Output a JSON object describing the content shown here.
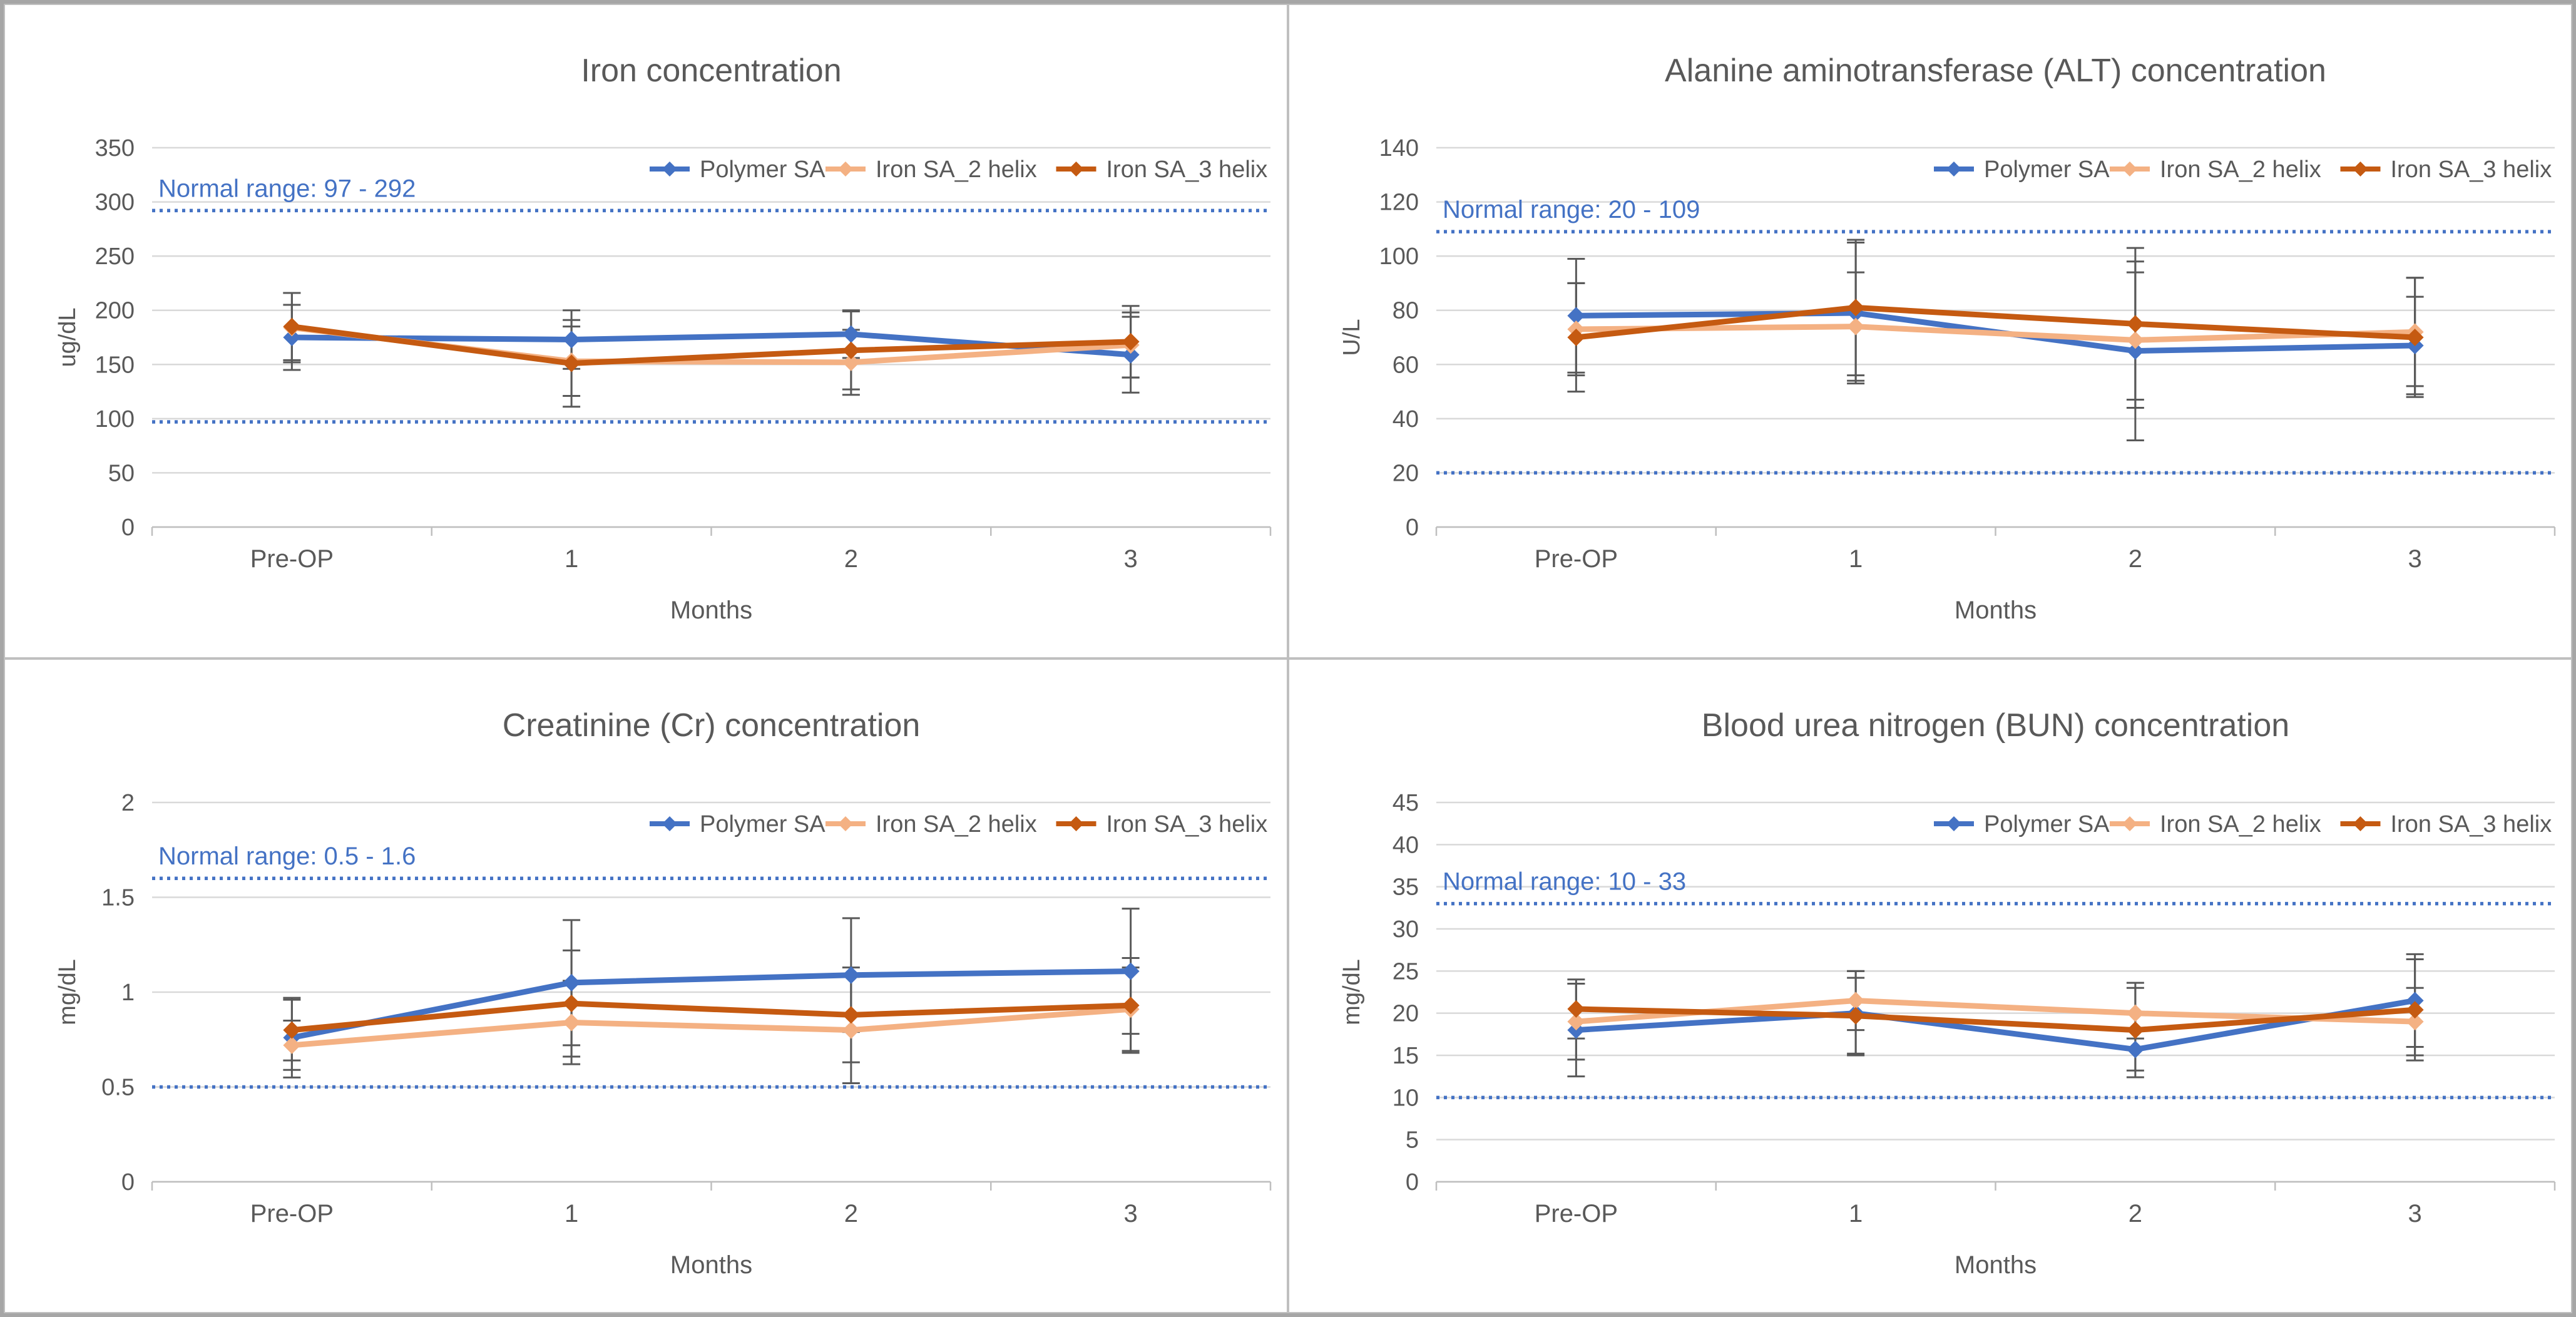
{
  "colors": {
    "series_blue": "#4472c4",
    "series_light_orange": "#f4b183",
    "series_dark_orange": "#c55a11",
    "error_bar": "#595959",
    "gridline": "#d9d9d9",
    "axis_line": "#bfbfbf",
    "axis_text": "#595959",
    "title_text": "#595959",
    "normal_range": "#4472c4",
    "panel_border": "#bfbfbf",
    "outer_border": "#a6a6a6",
    "background": "#ffffff"
  },
  "chart_data": [
    {
      "type": "line",
      "title": "Iron concentration",
      "ylabel": "ug/dL",
      "xlabel": "Months",
      "categories": [
        "Pre-OP",
        "1",
        "2",
        "3"
      ],
      "ylim": [
        0,
        350
      ],
      "y_step": 50,
      "grid": true,
      "legend_position": "top-right",
      "normal_range": {
        "label": "Normal range: 97 - 292",
        "low": 97,
        "high": 292
      },
      "series": [
        {
          "name": "Polymer SA",
          "color": "#4472c4",
          "values": [
            175,
            173,
            178,
            159
          ],
          "errors": [
            30,
            27,
            22,
            35
          ]
        },
        {
          "name": "Iron SA_2 helix",
          "color": "#f4b183",
          "values": [
            184,
            153,
            152,
            168
          ],
          "errors": [
            32,
            32,
            30,
            30
          ]
        },
        {
          "name": "Iron SA_3 helix",
          "color": "#c55a11",
          "values": [
            185,
            151,
            163,
            171
          ],
          "errors": [
            31,
            40,
            36,
            33
          ]
        }
      ]
    },
    {
      "type": "line",
      "title": "Alanine aminotransferase (ALT) concentration",
      "ylabel": "U/L",
      "xlabel": "Months",
      "categories": [
        "Pre-OP",
        "1",
        "2",
        "3"
      ],
      "ylim": [
        0,
        140
      ],
      "y_step": 20,
      "grid": true,
      "legend_position": "top-right",
      "normal_range": {
        "label": "Normal range: 20 - 109",
        "low": 20,
        "high": 109
      },
      "series": [
        {
          "name": "Polymer SA",
          "color": "#4472c4",
          "values": [
            78,
            79,
            65,
            67
          ],
          "errors": [
            21,
            26,
            33,
            18
          ]
        },
        {
          "name": "Iron SA_2 helix",
          "color": "#f4b183",
          "values": [
            73,
            74,
            69,
            72
          ],
          "errors": [
            17,
            20,
            25,
            20
          ]
        },
        {
          "name": "Iron SA_3 helix",
          "color": "#c55a11",
          "values": [
            70,
            81,
            75,
            70
          ],
          "errors": [
            20,
            25,
            28,
            22
          ]
        }
      ]
    },
    {
      "type": "line",
      "title": "Creatinine (Cr) concentration",
      "ylabel": "mg/dL",
      "xlabel": "Months",
      "categories": [
        "Pre-OP",
        "1",
        "2",
        "3"
      ],
      "ylim": [
        0,
        2
      ],
      "y_step": 0.5,
      "grid": true,
      "legend_position": "top-right",
      "normal_range": {
        "label": "Normal range: 0.5 - 1.6",
        "low": 0.5,
        "high": 1.6
      },
      "series": [
        {
          "name": "Polymer SA",
          "color": "#4472c4",
          "values": [
            0.76,
            1.05,
            1.09,
            1.11
          ],
          "errors": [
            0.21,
            0.33,
            0.3,
            0.33
          ]
        },
        {
          "name": "Iron SA_2 helix",
          "color": "#f4b183",
          "values": [
            0.72,
            0.84,
            0.8,
            0.91
          ],
          "errors": [
            0.13,
            0.22,
            0.28,
            0.22
          ]
        },
        {
          "name": "Iron SA_3 helix",
          "color": "#c55a11",
          "values": [
            0.8,
            0.94,
            0.88,
            0.93
          ],
          "errors": [
            0.16,
            0.28,
            0.25,
            0.25
          ]
        }
      ]
    },
    {
      "type": "line",
      "title": "Blood urea nitrogen (BUN) concentration",
      "ylabel": "mg/dL",
      "xlabel": "Months",
      "categories": [
        "Pre-OP",
        "1",
        "2",
        "3"
      ],
      "ylim": [
        0,
        45
      ],
      "y_step": 5,
      "grid": true,
      "legend_position": "top-right",
      "normal_range": {
        "label": "Normal range: 10 - 33",
        "low": 10,
        "high": 33
      },
      "series": [
        {
          "name": "Polymer SA",
          "color": "#4472c4",
          "values": [
            18,
            20,
            15.7,
            21.5
          ],
          "errors": [
            5.5,
            5,
            2.5,
            5.5
          ]
        },
        {
          "name": "Iron SA_2 helix",
          "color": "#f4b183",
          "values": [
            19,
            21.5,
            20,
            19
          ],
          "errors": [
            4.5,
            3.5,
            3,
            4
          ]
        },
        {
          "name": "Iron SA_3 helix",
          "color": "#c55a11",
          "values": [
            20.5,
            19.7,
            18,
            20.4
          ],
          "errors": [
            3.5,
            4.5,
            5.6,
            6
          ]
        }
      ]
    }
  ]
}
